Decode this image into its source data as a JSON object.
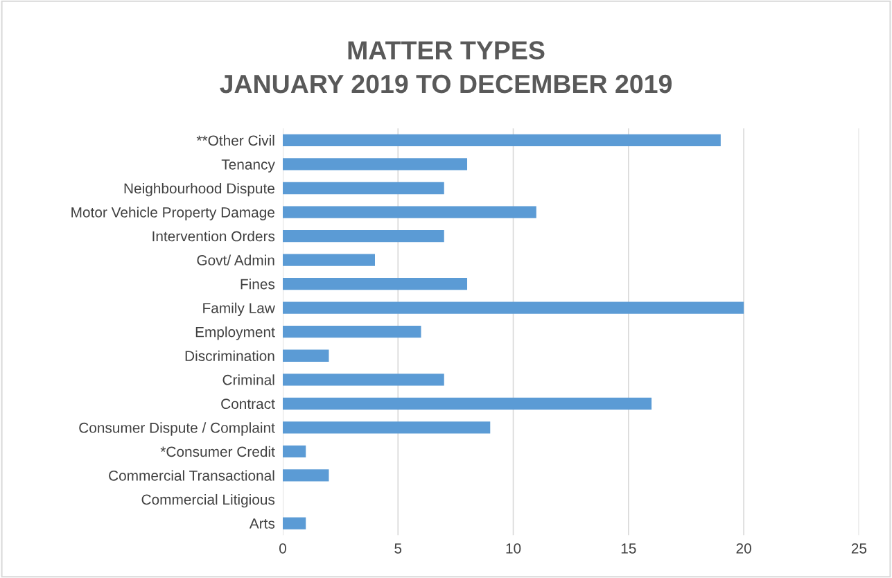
{
  "chart_data": {
    "type": "bar",
    "orientation": "horizontal",
    "title": "MATTER TYPES\nJANUARY 2019 TO DECEMBER 2019",
    "categories": [
      "**Other Civil",
      "Tenancy",
      "Neighbourhood Dispute",
      "Motor Vehicle Property Damage",
      "Intervention Orders",
      "Govt/ Admin",
      "Fines",
      "Family Law",
      "Employment",
      "Discrimination",
      "Criminal",
      "Contract",
      "Consumer Dispute / Complaint",
      "*Consumer Credit",
      "Commercial Transactional",
      "Commercial Litigious",
      "Arts"
    ],
    "values": [
      19,
      8,
      7,
      11,
      7,
      4,
      8,
      20,
      6,
      2,
      7,
      16,
      9,
      1,
      2,
      0,
      1
    ],
    "color": "#5b9bd5",
    "xlim": [
      0,
      25
    ],
    "xticks": [
      0,
      5,
      10,
      15,
      20,
      25
    ],
    "grid": "x",
    "legend": false
  }
}
